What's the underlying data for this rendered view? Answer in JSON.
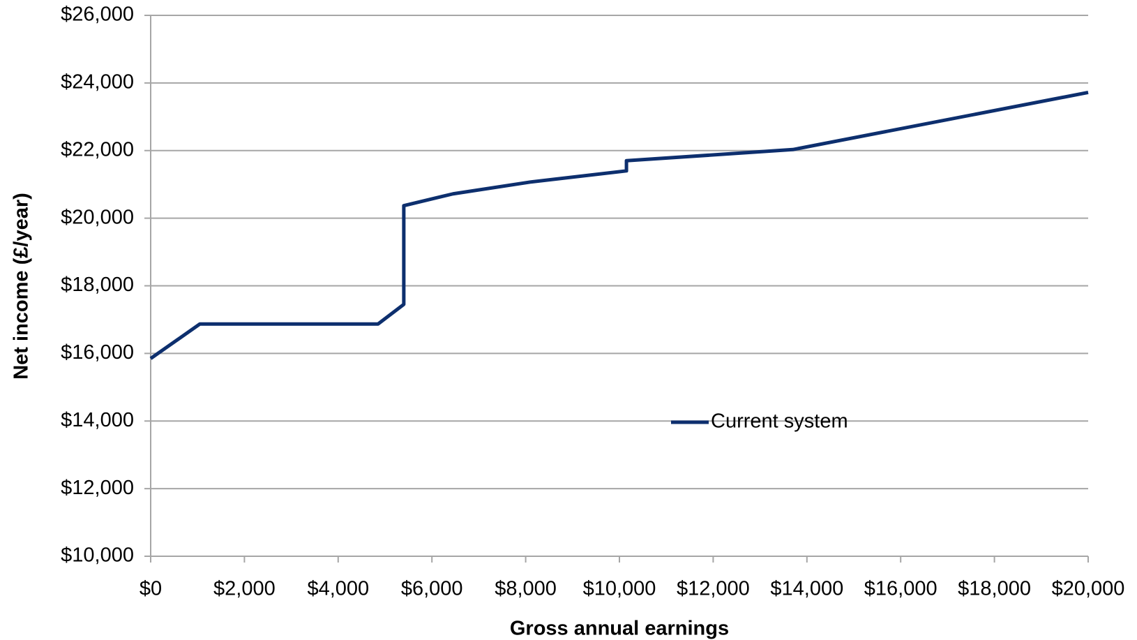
{
  "chart_data": {
    "type": "line",
    "x_label": "Gross annual earnings",
    "y_label": "Net income (£/year)",
    "x": [
      0,
      1050,
      4850,
      5400,
      5400,
      6450,
      8100,
      10150,
      10150,
      13700,
      20000
    ],
    "series": [
      {
        "name": "Current system",
        "color": "#0d2f6e",
        "values": [
          15850,
          16870,
          16870,
          17450,
          20370,
          20720,
          21070,
          21400,
          21700,
          22030,
          23720
        ]
      }
    ],
    "xlim": [
      0,
      20000
    ],
    "xticks": [
      {
        "value": 0,
        "label": "$0"
      },
      {
        "value": 2000,
        "label": "$2,000"
      },
      {
        "value": 4000,
        "label": "$4,000"
      },
      {
        "value": 6000,
        "label": "$6,000"
      },
      {
        "value": 8000,
        "label": "$8,000"
      },
      {
        "value": 10000,
        "label": "$10,000"
      },
      {
        "value": 12000,
        "label": "$12,000"
      },
      {
        "value": 14000,
        "label": "$14,000"
      },
      {
        "value": 16000,
        "label": "$16,000"
      },
      {
        "value": 18000,
        "label": "$18,000"
      },
      {
        "value": 20000,
        "label": "$20,000"
      }
    ],
    "ylim": [
      10000,
      26000
    ],
    "yticks": [
      {
        "value": 10000,
        "label": "$10,000"
      },
      {
        "value": 12000,
        "label": "$12,000"
      },
      {
        "value": 14000,
        "label": "$14,000"
      },
      {
        "value": 16000,
        "label": "$16,000"
      },
      {
        "value": 18000,
        "label": "$18,000"
      },
      {
        "value": 20000,
        "label": "$20,000"
      },
      {
        "value": 22000,
        "label": "$22,000"
      },
      {
        "value": 24000,
        "label": "$24,000"
      },
      {
        "value": 26000,
        "label": "$26,000"
      }
    ],
    "grid": true
  }
}
